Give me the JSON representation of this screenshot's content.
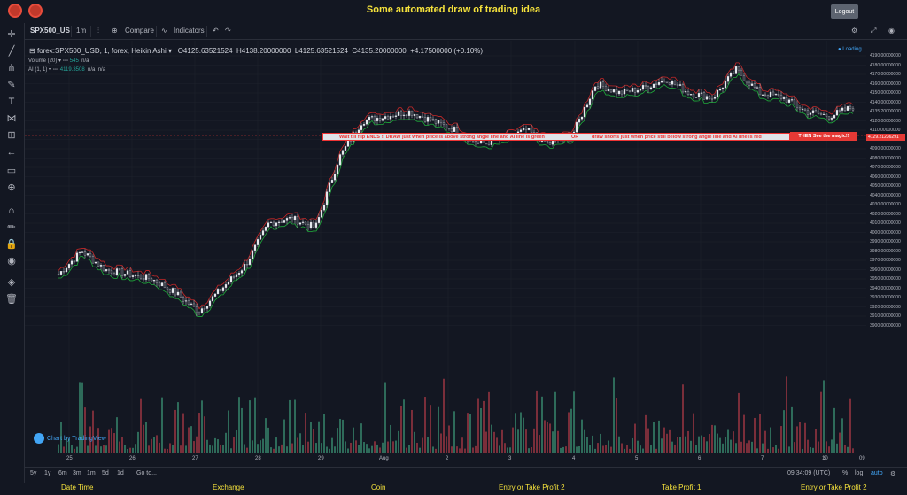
{
  "header": {
    "title": "Some automated draw of trading idea",
    "logout": "Logout"
  },
  "toolbar": {
    "symbol": "SPX500_US",
    "interval": "1m",
    "compare": "Compare",
    "indicators": "Indicators"
  },
  "legend": {
    "symbol": "forex:SPX500_USD, 1, forex, Heikin Ashi",
    "open": "O4125.63521524",
    "high": "H4138.20000000",
    "low": "L4125.63521524",
    "close": "C4135.20000000",
    "change": "+4.17500000 (+0.10%)",
    "volume_label": "Volume (20)",
    "volume_value": "545",
    "volume_na": "n/a",
    "ai_label": "AI (1, 1)",
    "ai_value": "4119.3508",
    "ai_na1": "n/a",
    "ai_na2": "n/a"
  },
  "loading": "Loading",
  "banner": {
    "part1": "Wait till flip ENDS !!  DRAW just when price is above strong angle line and AI line is green",
    "part2": "OR",
    "part3": "draw shorts just when price still below strong angle line and AI line is red",
    "end": "THEN See the magic!!",
    "price": "4129.21236291"
  },
  "price_axis": [
    "4190.00000000",
    "4180.00000000",
    "4170.00000000",
    "4160.00000000",
    "4150.00000000",
    "4140.00000000",
    "4135.20000000",
    "4120.00000000",
    "4110.00000000",
    "4100.00000000",
    "4090.00000000",
    "4080.00000000",
    "4070.00000000",
    "4060.00000000",
    "4050.00000000",
    "4040.00000000",
    "4030.00000000",
    "4020.00000000",
    "4010.00000000",
    "4000.00000000",
    "3990.00000000",
    "3980.00000000",
    "3970.00000000",
    "3960.00000000",
    "3950.00000000",
    "3940.00000000",
    "3930.00000000",
    "3920.00000000",
    "3910.00000000",
    "3900.00000000"
  ],
  "time_axis": [
    "25",
    "26",
    "27",
    "28",
    "29",
    "Aug",
    "2",
    "3",
    "4",
    "5",
    "6",
    "7",
    "9",
    "10",
    "09"
  ],
  "tv_logo": "Chart by TradingView",
  "bottom": {
    "ranges": [
      "5y",
      "1y",
      "6m",
      "3m",
      "1m",
      "5d",
      "1d"
    ],
    "goto": "Go to...",
    "time": "09:34:09 (UTC)",
    "pct": "%",
    "log": "log",
    "auto": "auto"
  },
  "footer": [
    "Date Time",
    "Exchange",
    "Coin",
    "Entry or Take Profit 2",
    "Take Profit 1",
    "Entry or Take Profit 2"
  ],
  "chart_data": {
    "type": "candlestick",
    "y_range": [
      3900,
      4190
    ],
    "x_labels": [
      "25",
      "26",
      "27",
      "28",
      "29",
      "Aug",
      "2",
      "3",
      "4",
      "5",
      "6",
      "7",
      "9",
      "10"
    ],
    "approx_close": [
      3955,
      3980,
      3960,
      3955,
      3950,
      3935,
      3915,
      3940,
      3965,
      4010,
      4015,
      4005,
      4080,
      4120,
      4125,
      4130,
      4120,
      4110,
      4095,
      4100,
      4110,
      4095,
      4105,
      4160,
      4150,
      4155,
      4165,
      4150,
      4145,
      4175,
      4150,
      4145,
      4130,
      4125,
      4135
    ]
  }
}
